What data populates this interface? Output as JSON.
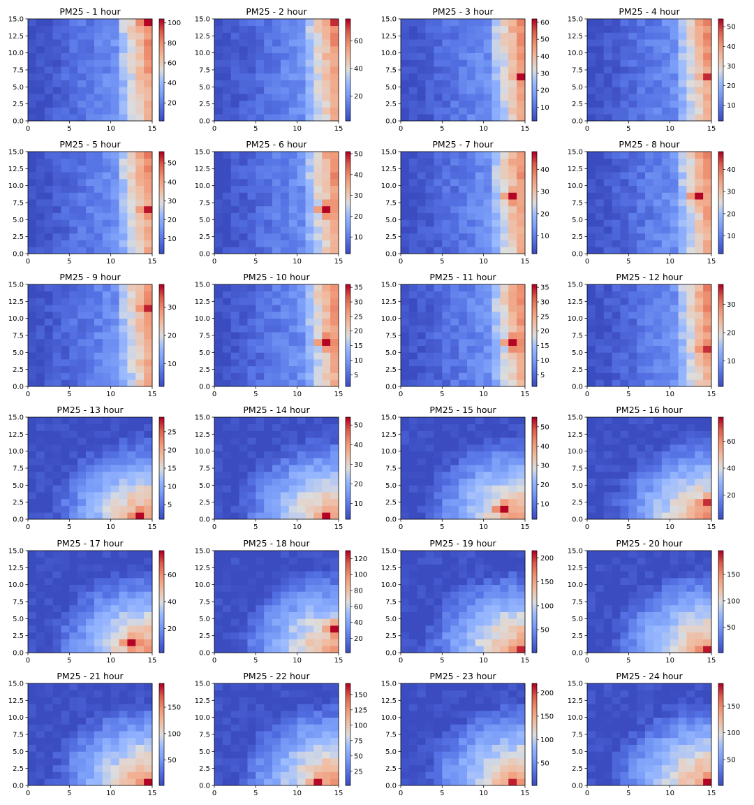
{
  "chart_data": [
    {
      "type": "heatmap",
      "title": "PM25 - 1 hour",
      "x_ticks": [
        "0",
        "5",
        "10",
        "15"
      ],
      "y_ticks": [
        "0.0",
        "2.5",
        "5.0",
        "7.5",
        "10.0",
        "12.5",
        "15.0"
      ],
      "xlim": [
        0,
        15
      ],
      "ylim": [
        0,
        15
      ],
      "colorbar_ticks": [
        20,
        40,
        60,
        80,
        100
      ],
      "vmin": 2,
      "vmax": 104,
      "pattern": "east",
      "hot_spot": [
        14,
        14
      ],
      "colormap": "coolwarm"
    },
    {
      "type": "heatmap",
      "title": "PM25 - 2 hour",
      "x_ticks": [
        "0",
        "5",
        "10",
        "15"
      ],
      "y_ticks": [
        "0.0",
        "2.5",
        "5.0",
        "7.5",
        "10.0",
        "12.5",
        "15.0"
      ],
      "xlim": [
        0,
        15
      ],
      "ylim": [
        0,
        15
      ],
      "colorbar_ticks": [
        20,
        40,
        60
      ],
      "vmin": 2,
      "vmax": 76,
      "pattern": "east",
      "hot_spot": [
        14,
        14
      ],
      "colormap": "coolwarm"
    },
    {
      "type": "heatmap",
      "title": "PM25 - 3 hour",
      "x_ticks": [
        "0",
        "5",
        "10",
        "15"
      ],
      "y_ticks": [
        "0.0",
        "2.5",
        "5.0",
        "7.5",
        "10.0",
        "12.5",
        "15.0"
      ],
      "xlim": [
        0,
        15
      ],
      "ylim": [
        0,
        15
      ],
      "colorbar_ticks": [
        10,
        20,
        30,
        40,
        50,
        60
      ],
      "vmin": 2,
      "vmax": 62,
      "pattern": "east",
      "hot_spot": [
        14,
        6
      ],
      "colormap": "coolwarm"
    },
    {
      "type": "heatmap",
      "title": "PM25 - 4 hour",
      "x_ticks": [
        "0",
        "5",
        "10",
        "15"
      ],
      "y_ticks": [
        "0.0",
        "2.5",
        "5.0",
        "7.5",
        "10.0",
        "12.5",
        "15.0"
      ],
      "xlim": [
        0,
        15
      ],
      "ylim": [
        0,
        15
      ],
      "colorbar_ticks": [
        10,
        20,
        30,
        40,
        50
      ],
      "vmin": 2,
      "vmax": 54,
      "pattern": "east",
      "hot_spot": [
        14,
        6
      ],
      "colormap": "coolwarm"
    },
    {
      "type": "heatmap",
      "title": "PM25 - 5 hour",
      "x_ticks": [
        "0",
        "5",
        "10",
        "15"
      ],
      "y_ticks": [
        "0.0",
        "2.5",
        "5.0",
        "7.5",
        "10.0",
        "12.5",
        "15.0"
      ],
      "xlim": [
        0,
        15
      ],
      "ylim": [
        0,
        15
      ],
      "colorbar_ticks": [
        10,
        20,
        30,
        40,
        50
      ],
      "vmin": 2,
      "vmax": 56,
      "pattern": "east",
      "hot_spot": [
        14,
        6
      ],
      "colormap": "coolwarm"
    },
    {
      "type": "heatmap",
      "title": "PM25 - 6 hour",
      "x_ticks": [
        "0",
        "5",
        "10",
        "15"
      ],
      "y_ticks": [
        "0.0",
        "2.5",
        "5.0",
        "7.5",
        "10.0",
        "12.5",
        "15.0"
      ],
      "xlim": [
        0,
        15
      ],
      "ylim": [
        0,
        15
      ],
      "colorbar_ticks": [
        10,
        20,
        30,
        40,
        50
      ],
      "vmin": 2,
      "vmax": 51,
      "pattern": "east",
      "hot_spot": [
        13,
        6
      ],
      "colormap": "coolwarm"
    },
    {
      "type": "heatmap",
      "title": "PM25 - 7 hour",
      "x_ticks": [
        "0",
        "5",
        "10",
        "15"
      ],
      "y_ticks": [
        "0.0",
        "2.5",
        "5.0",
        "7.5",
        "10.0",
        "12.5",
        "15.0"
      ],
      "xlim": [
        0,
        15
      ],
      "ylim": [
        0,
        15
      ],
      "colorbar_ticks": [
        10,
        20,
        30,
        40
      ],
      "vmin": 2,
      "vmax": 48,
      "pattern": "east",
      "hot_spot": [
        13,
        8
      ],
      "colormap": "coolwarm"
    },
    {
      "type": "heatmap",
      "title": "PM25 - 8 hour",
      "x_ticks": [
        "0",
        "5",
        "10",
        "15"
      ],
      "y_ticks": [
        "0.0",
        "2.5",
        "5.0",
        "7.5",
        "10.0",
        "12.5",
        "15.0"
      ],
      "xlim": [
        0,
        15
      ],
      "ylim": [
        0,
        15
      ],
      "colorbar_ticks": [
        10,
        20,
        30,
        40
      ],
      "vmin": 2,
      "vmax": 48,
      "pattern": "east",
      "hot_spot": [
        13,
        8
      ],
      "colormap": "coolwarm"
    },
    {
      "type": "heatmap",
      "title": "PM25 - 9 hour",
      "x_ticks": [
        "0",
        "5",
        "10",
        "15"
      ],
      "y_ticks": [
        "0.0",
        "2.5",
        "5.0",
        "7.5",
        "10.0",
        "12.5",
        "15.0"
      ],
      "xlim": [
        0,
        15
      ],
      "ylim": [
        0,
        15
      ],
      "colorbar_ticks": [
        10,
        20,
        30
      ],
      "vmin": 2,
      "vmax": 38,
      "pattern": "east",
      "hot_spot": [
        14,
        11
      ],
      "colormap": "coolwarm"
    },
    {
      "type": "heatmap",
      "title": "PM25 - 10 hour",
      "x_ticks": [
        "0",
        "5",
        "10",
        "15"
      ],
      "y_ticks": [
        "0.0",
        "2.5",
        "5.0",
        "7.5",
        "10.0",
        "12.5",
        "15.0"
      ],
      "xlim": [
        0,
        15
      ],
      "ylim": [
        0,
        15
      ],
      "colorbar_ticks": [
        5,
        10,
        15,
        20,
        25,
        30,
        35
      ],
      "vmin": 1,
      "vmax": 36,
      "pattern": "east",
      "hot_spot": [
        13,
        6
      ],
      "colormap": "coolwarm"
    },
    {
      "type": "heatmap",
      "title": "PM25 - 11 hour",
      "x_ticks": [
        "0",
        "5",
        "10",
        "15"
      ],
      "y_ticks": [
        "0.0",
        "2.5",
        "5.0",
        "7.5",
        "10.0",
        "12.5",
        "15.0"
      ],
      "xlim": [
        0,
        15
      ],
      "ylim": [
        0,
        15
      ],
      "colorbar_ticks": [
        5,
        10,
        15,
        20,
        25,
        30,
        35
      ],
      "vmin": 1,
      "vmax": 36,
      "pattern": "east",
      "hot_spot": [
        13,
        6
      ],
      "colormap": "coolwarm"
    },
    {
      "type": "heatmap",
      "title": "PM25 - 12 hour",
      "x_ticks": [
        "0",
        "5",
        "10",
        "15"
      ],
      "y_ticks": [
        "0.0",
        "2.5",
        "5.0",
        "7.5",
        "10.0",
        "12.5",
        "15.0"
      ],
      "xlim": [
        0,
        15
      ],
      "ylim": [
        0,
        15
      ],
      "colorbar_ticks": [
        10,
        20,
        30
      ],
      "vmin": 1,
      "vmax": 37,
      "pattern": "east",
      "hot_spot": [
        14,
        5
      ],
      "colormap": "coolwarm"
    },
    {
      "type": "heatmap",
      "title": "PM25 - 13 hour",
      "x_ticks": [
        "0",
        "5",
        "10",
        "15"
      ],
      "y_ticks": [
        "0.0",
        "2.5",
        "5.0",
        "7.5",
        "10.0",
        "12.5",
        "15.0"
      ],
      "xlim": [
        0,
        15
      ],
      "ylim": [
        0,
        15
      ],
      "colorbar_ticks": [
        5,
        10,
        15,
        20,
        25
      ],
      "vmin": 1,
      "vmax": 29,
      "pattern": "southeast",
      "hot_spot": [
        13,
        0
      ],
      "colormap": "coolwarm"
    },
    {
      "type": "heatmap",
      "title": "PM25 - 14 hour",
      "x_ticks": [
        "0",
        "5",
        "10",
        "15"
      ],
      "y_ticks": [
        "0.0",
        "2.5",
        "5.0",
        "7.5",
        "10.0",
        "12.5",
        "15.0"
      ],
      "xlim": [
        0,
        15
      ],
      "ylim": [
        0,
        15
      ],
      "colorbar_ticks": [
        10,
        20,
        30,
        40,
        50
      ],
      "vmin": 2,
      "vmax": 54,
      "pattern": "southeast",
      "hot_spot": [
        13,
        0
      ],
      "colormap": "coolwarm"
    },
    {
      "type": "heatmap",
      "title": "PM25 - 15 hour",
      "x_ticks": [
        "0",
        "5",
        "10",
        "15"
      ],
      "y_ticks": [
        "0.0",
        "2.5",
        "5.0",
        "7.5",
        "10.0",
        "12.5",
        "15.0"
      ],
      "xlim": [
        0,
        15
      ],
      "ylim": [
        0,
        15
      ],
      "colorbar_ticks": [
        10,
        20,
        30,
        40,
        50
      ],
      "vmin": 2,
      "vmax": 55,
      "pattern": "southeast",
      "hot_spot": [
        12,
        1
      ],
      "colormap": "coolwarm"
    },
    {
      "type": "heatmap",
      "title": "PM25 - 16 hour",
      "x_ticks": [
        "0",
        "5",
        "10",
        "15"
      ],
      "y_ticks": [
        "0.0",
        "2.5",
        "5.0",
        "7.5",
        "10.0",
        "12.5",
        "15.0"
      ],
      "xlim": [
        0,
        15
      ],
      "ylim": [
        0,
        15
      ],
      "colorbar_ticks": [
        20,
        40,
        60
      ],
      "vmin": 2,
      "vmax": 78,
      "pattern": "southeast",
      "hot_spot": [
        14,
        2
      ],
      "colormap": "coolwarm"
    },
    {
      "type": "heatmap",
      "title": "PM25 - 17 hour",
      "x_ticks": [
        "0",
        "5",
        "10",
        "15"
      ],
      "y_ticks": [
        "0.0",
        "2.5",
        "5.0",
        "7.5",
        "10.0",
        "12.5",
        "15.0"
      ],
      "xlim": [
        0,
        15
      ],
      "ylim": [
        0,
        15
      ],
      "colorbar_ticks": [
        20,
        40,
        60
      ],
      "vmin": 2,
      "vmax": 78,
      "pattern": "southeast",
      "hot_spot": [
        12,
        1
      ],
      "colormap": "coolwarm"
    },
    {
      "type": "heatmap",
      "title": "PM25 - 18 hour",
      "x_ticks": [
        "0",
        "5",
        "10",
        "15"
      ],
      "y_ticks": [
        "0.0",
        "2.5",
        "5.0",
        "7.5",
        "10.0",
        "12.5",
        "15.0"
      ],
      "xlim": [
        0,
        15
      ],
      "ylim": [
        0,
        15
      ],
      "colorbar_ticks": [
        20,
        40,
        60,
        80,
        100,
        120
      ],
      "vmin": 2,
      "vmax": 130,
      "pattern": "southeast",
      "hot_spot": [
        14,
        3
      ],
      "colormap": "coolwarm"
    },
    {
      "type": "heatmap",
      "title": "PM25 - 19 hour",
      "x_ticks": [
        "0",
        "5",
        "10",
        "15"
      ],
      "y_ticks": [
        "0.0",
        "2.5",
        "5.0",
        "7.5",
        "10.0",
        "12.5",
        "15.0"
      ],
      "xlim": [
        0,
        15
      ],
      "ylim": [
        0,
        15
      ],
      "colorbar_ticks": [
        50,
        100,
        150,
        200
      ],
      "vmin": 2,
      "vmax": 215,
      "pattern": "southeast",
      "hot_spot": [
        14,
        0
      ],
      "colormap": "coolwarm"
    },
    {
      "type": "heatmap",
      "title": "PM25 - 20 hour",
      "x_ticks": [
        "0",
        "5",
        "10",
        "15"
      ],
      "y_ticks": [
        "0.0",
        "2.5",
        "5.0",
        "7.5",
        "10.0",
        "12.5",
        "15.0"
      ],
      "xlim": [
        0,
        15
      ],
      "ylim": [
        0,
        15
      ],
      "colorbar_ticks": [
        50,
        100,
        150
      ],
      "vmin": 2,
      "vmax": 195,
      "pattern": "southeast",
      "hot_spot": [
        14,
        0
      ],
      "colormap": "coolwarm"
    },
    {
      "type": "heatmap",
      "title": "PM25 - 21 hour",
      "x_ticks": [
        "0",
        "5",
        "10",
        "15"
      ],
      "y_ticks": [
        "0.0",
        "2.5",
        "5.0",
        "7.5",
        "10.0",
        "12.5",
        "15.0"
      ],
      "xlim": [
        0,
        15
      ],
      "ylim": [
        0,
        15
      ],
      "colorbar_ticks": [
        50,
        100,
        150
      ],
      "vmin": 2,
      "vmax": 195,
      "pattern": "southeast",
      "hot_spot": [
        14,
        0
      ],
      "colormap": "coolwarm"
    },
    {
      "type": "heatmap",
      "title": "PM25 - 22 hour",
      "x_ticks": [
        "0",
        "5",
        "10",
        "15"
      ],
      "y_ticks": [
        "0.0",
        "2.5",
        "5.0",
        "7.5",
        "10.0",
        "12.5",
        "15.0"
      ],
      "xlim": [
        0,
        15
      ],
      "ylim": [
        0,
        15
      ],
      "colorbar_ticks": [
        25,
        50,
        75,
        100,
        125,
        150
      ],
      "vmin": 2,
      "vmax": 168,
      "pattern": "southeast",
      "hot_spot": [
        12,
        0
      ],
      "colormap": "coolwarm"
    },
    {
      "type": "heatmap",
      "title": "PM25 - 23 hour",
      "x_ticks": [
        "0",
        "5",
        "10",
        "15"
      ],
      "y_ticks": [
        "0.0",
        "2.5",
        "5.0",
        "7.5",
        "10.0",
        "12.5",
        "15.0"
      ],
      "xlim": [
        0,
        15
      ],
      "ylim": [
        0,
        15
      ],
      "colorbar_ticks": [
        50,
        100,
        150,
        200
      ],
      "vmin": 2,
      "vmax": 220,
      "pattern": "southeast",
      "hot_spot": [
        13,
        0
      ],
      "colormap": "coolwarm"
    },
    {
      "type": "heatmap",
      "title": "PM25 - 24 hour",
      "x_ticks": [
        "0",
        "5",
        "10",
        "15"
      ],
      "y_ticks": [
        "0.0",
        "2.5",
        "5.0",
        "7.5",
        "10.0",
        "12.5",
        "15.0"
      ],
      "xlim": [
        0,
        15
      ],
      "ylim": [
        0,
        15
      ],
      "colorbar_ticks": [
        50,
        100,
        150
      ],
      "vmin": 2,
      "vmax": 192,
      "pattern": "southeast",
      "hot_spot": [
        14,
        0
      ],
      "colormap": "coolwarm"
    }
  ]
}
